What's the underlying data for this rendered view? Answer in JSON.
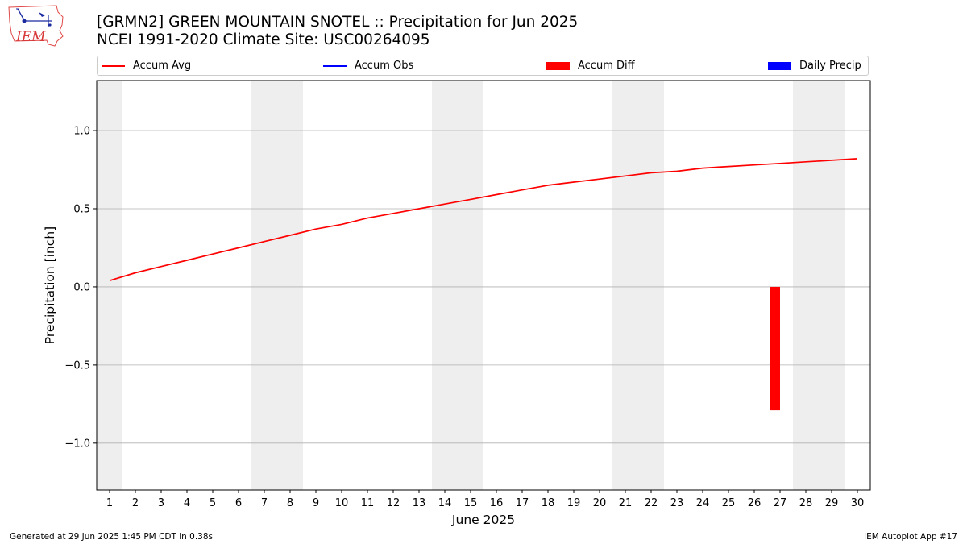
{
  "header": {
    "title_line1": "[GRMN2] GREEN MOUNTAIN SNOTEL :: Precipitation for Jun 2025",
    "title_line2": "NCEI 1991-2020 Climate Site: USC00264095",
    "logo_text": "IEM"
  },
  "legend": {
    "items": [
      {
        "label": "Accum Avg",
        "color": "#ff0000",
        "kind": "line"
      },
      {
        "label": "Accum Obs",
        "color": "#0000ff",
        "kind": "line"
      },
      {
        "label": "Accum Diff",
        "color": "#ff0000",
        "kind": "box"
      },
      {
        "label": "Daily Precip",
        "color": "#0000ff",
        "kind": "box"
      }
    ]
  },
  "footer": {
    "left": "Generated at 29 Jun 2025 1:45 PM CDT in 0.38s",
    "right": "IEM Autoplot App #17"
  },
  "chart_data": {
    "type": "line",
    "xlabel": "June 2025",
    "ylabel": "Precipitation [inch]",
    "xlim": [
      0.5,
      30.5
    ],
    "ylim": [
      -1.3,
      1.32
    ],
    "x_ticks": [
      1,
      2,
      3,
      4,
      5,
      6,
      7,
      8,
      9,
      10,
      11,
      12,
      13,
      14,
      15,
      16,
      17,
      18,
      19,
      20,
      21,
      22,
      23,
      24,
      25,
      26,
      27,
      28,
      29,
      30
    ],
    "y_ticks": [
      -1.0,
      -0.5,
      0.0,
      0.5,
      1.0
    ],
    "y_tick_labels": [
      "−1.0",
      "−0.5",
      "0.0",
      "0.5",
      "1.0"
    ],
    "grid": "horizontal",
    "weekend_shading": [
      [
        0.5,
        1.5
      ],
      [
        6.5,
        8.5
      ],
      [
        13.5,
        15.5
      ],
      [
        20.5,
        22.5
      ],
      [
        27.5,
        29.5
      ]
    ],
    "shading_color": "#eeeeee",
    "series": [
      {
        "name": "Accum Avg",
        "type": "line",
        "color": "#ff0000",
        "x": [
          1,
          2,
          3,
          4,
          5,
          6,
          7,
          8,
          9,
          10,
          11,
          12,
          13,
          14,
          15,
          16,
          17,
          18,
          19,
          20,
          21,
          22,
          23,
          24,
          25,
          26,
          27,
          28,
          29,
          30
        ],
        "values": [
          0.04,
          0.09,
          0.13,
          0.17,
          0.21,
          0.25,
          0.29,
          0.33,
          0.37,
          0.4,
          0.44,
          0.47,
          0.5,
          0.53,
          0.56,
          0.59,
          0.62,
          0.65,
          0.67,
          0.69,
          0.71,
          0.73,
          0.74,
          0.76,
          0.77,
          0.78,
          0.79,
          0.8,
          0.81,
          0.82
        ]
      },
      {
        "name": "Accum Diff",
        "type": "bar",
        "color": "#ff0000",
        "x": [
          26.8
        ],
        "values": [
          -0.79
        ]
      }
    ]
  }
}
